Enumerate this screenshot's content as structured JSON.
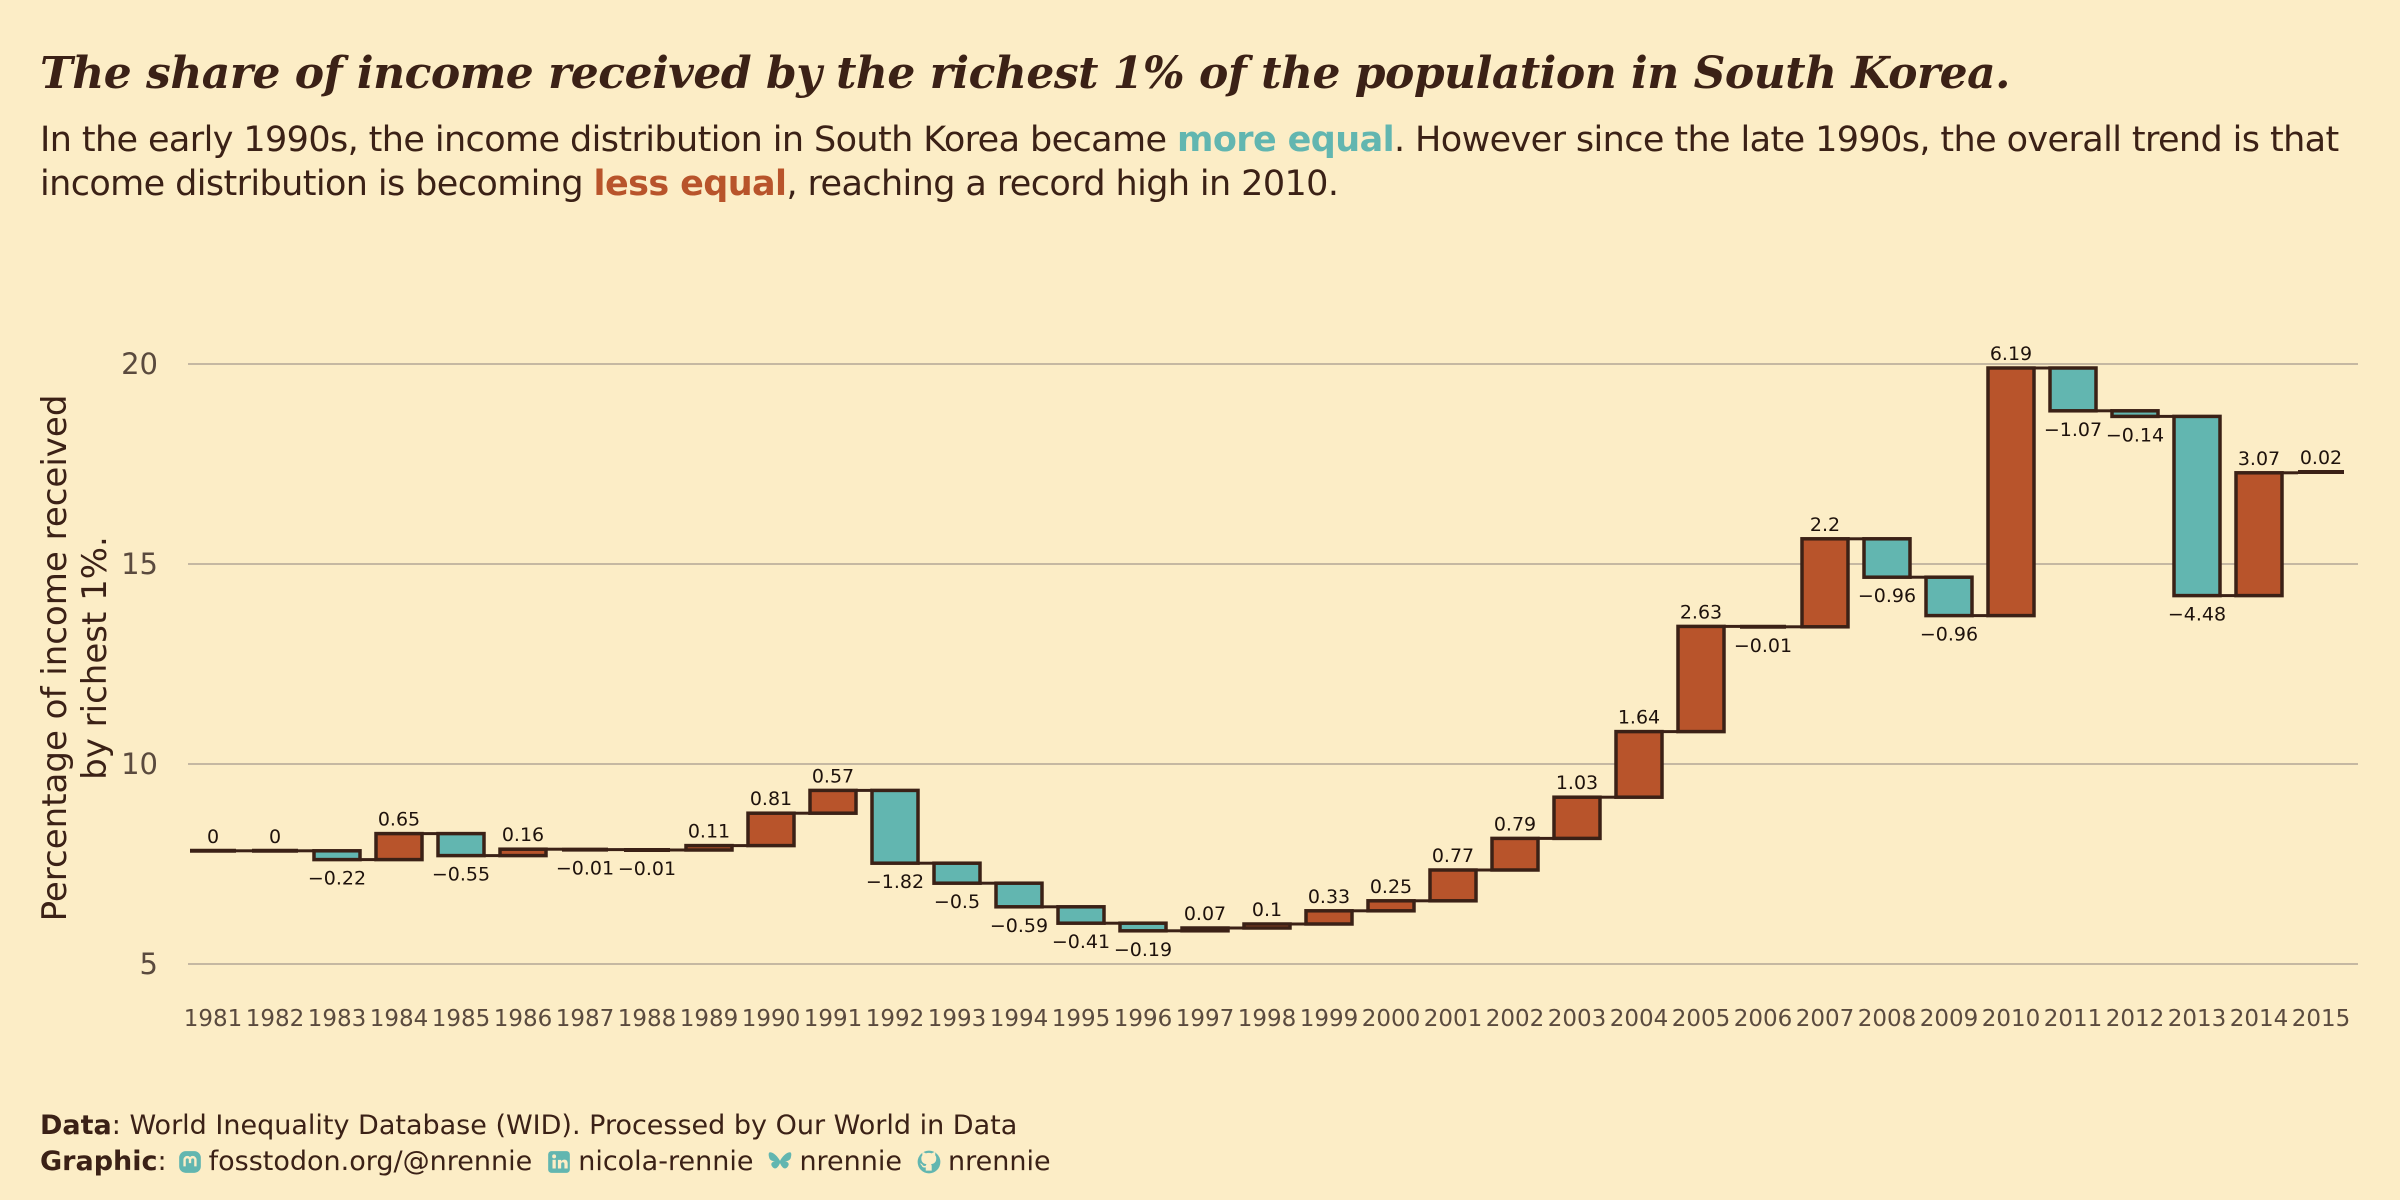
{
  "title": "The share of income received by the richest 1% of the population in South Korea.",
  "subtitle": {
    "part1": "In the early 1990s, the income distribution in South Korea became ",
    "kw1": "more equal",
    "part2": ". However since the late 1990s, the overall trend is that income distribution is becoming ",
    "kw2": "less equal",
    "part3": ", reaching a record high in 2010."
  },
  "colors": {
    "background": "#fcedc6",
    "increase": "#b8542b",
    "decrease": "#62b6b0",
    "outline": "#3b2116",
    "grid": "#c5b8a2",
    "text": "#3b2116"
  },
  "chart_data": {
    "type": "waterfall",
    "ylabel": "Percentage of income received by richest 1%.",
    "ylabel_lines": [
      "Percentage of income received",
      "by richest 1%."
    ],
    "ylim": [
      4.6,
      20.6
    ],
    "yticks": [
      5,
      10,
      15,
      20
    ],
    "start_value": 7.83,
    "grid": true,
    "categories": [
      "1981",
      "1982",
      "1983",
      "1984",
      "1985",
      "1986",
      "1987",
      "1988",
      "1989",
      "1990",
      "1991",
      "1992",
      "1993",
      "1994",
      "1995",
      "1996",
      "1997",
      "1998",
      "1999",
      "2000",
      "2001",
      "2002",
      "2003",
      "2004",
      "2005",
      "2006",
      "2007",
      "2008",
      "2009",
      "2010",
      "2011",
      "2012",
      "2013",
      "2014",
      "2015"
    ],
    "changes": [
      0,
      0,
      -0.22,
      0.65,
      -0.55,
      0.16,
      -0.01,
      -0.01,
      0.11,
      0.81,
      0.57,
      -1.82,
      -0.5,
      -0.59,
      -0.41,
      -0.19,
      0.07,
      0.1,
      0.33,
      0.25,
      0.77,
      0.79,
      1.03,
      1.64,
      2.63,
      -0.01,
      2.2,
      -0.96,
      -0.96,
      6.19,
      -1.07,
      -0.14,
      -4.48,
      3.07,
      0.02
    ]
  },
  "caption": {
    "data_label": "Data",
    "data_text": ": World Inequality Database (WID). Processed by Our World in Data",
    "graphic_label": "Graphic",
    "graphic_sep": ":",
    "mastodon": "fosstodon.org/@nrennie",
    "linkedin": "nicola-rennie",
    "bluesky": "nrennie",
    "github": "nrennie"
  }
}
